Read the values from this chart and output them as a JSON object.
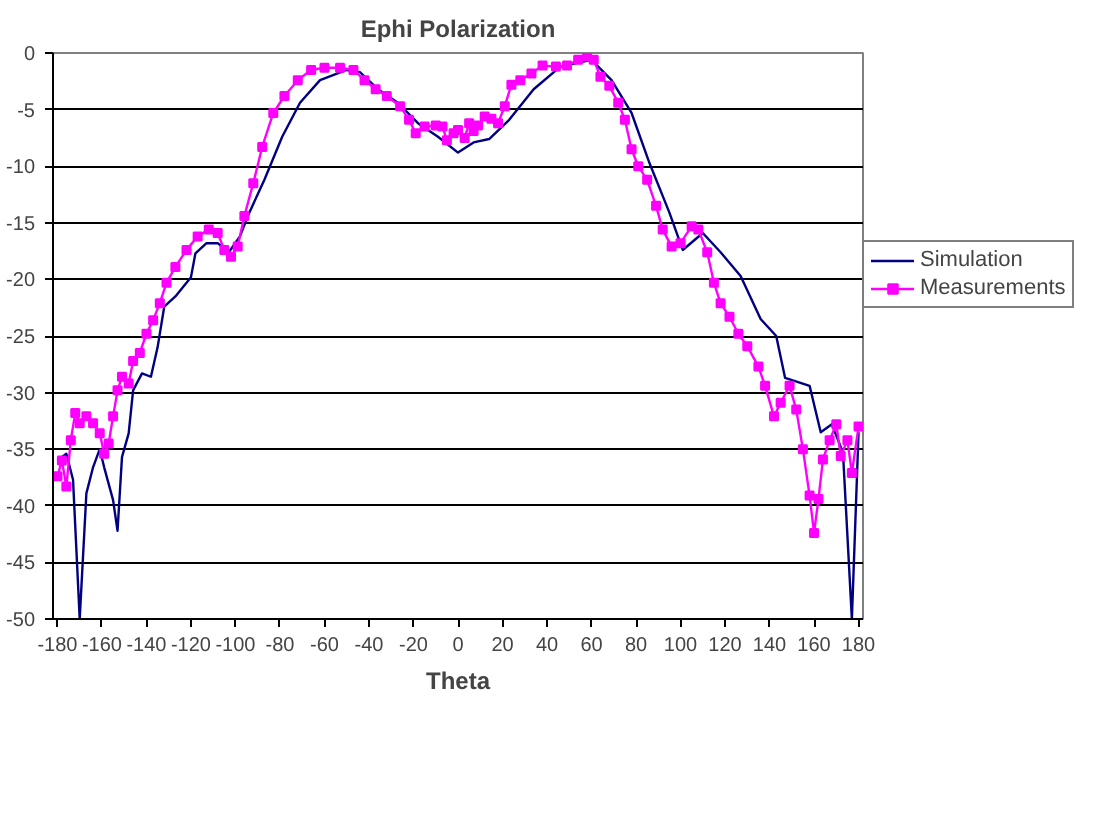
{
  "chart_data": {
    "type": "line",
    "title": "Ephi Polarization",
    "xlabel": "Theta",
    "xlim": [
      -182,
      182
    ],
    "xticks": [
      -180,
      -160,
      -140,
      -120,
      -100,
      -80,
      -60,
      -40,
      -20,
      0,
      20,
      40,
      60,
      80,
      100,
      120,
      140,
      160,
      180
    ],
    "ylim": [
      -50,
      0
    ],
    "yticks": [
      -50,
      -45,
      -40,
      -35,
      -30,
      -25,
      -20,
      -15,
      -10,
      -5,
      0
    ],
    "grid": "y",
    "legend": "right",
    "series": [
      {
        "name": "Simulation",
        "color": "#000080",
        "marker": "none",
        "x": [
          -180,
          -176,
          -173,
          -170,
          -167,
          -164,
          -161,
          -159,
          -155,
          -153,
          -151,
          -148,
          -146,
          -142,
          -138,
          -135,
          -132,
          -127,
          -120,
          -118,
          -113,
          -108,
          -103,
          -98,
          -94,
          -87,
          -79,
          -71,
          -62,
          -50,
          -44,
          -36,
          -27,
          -18,
          -9,
          0,
          7,
          14,
          23,
          34,
          46,
          60,
          69,
          78,
          86,
          95,
          101,
          110,
          118,
          127,
          136,
          143,
          147,
          158,
          163,
          168,
          173,
          177,
          180
        ],
        "values": [
          -36,
          -35.4,
          -37.7,
          -50,
          -38.9,
          -36.6,
          -35,
          -36.6,
          -39.5,
          -42.2,
          -35.7,
          -33.6,
          -29.8,
          -28.3,
          -28.6,
          -26,
          -22.4,
          -21.5,
          -19.8,
          -17.7,
          -16.8,
          -16.8,
          -17.6,
          -16.2,
          -14.2,
          -11.2,
          -7.4,
          -4.4,
          -2.4,
          -1.5,
          -1.7,
          -3.2,
          -4.4,
          -6.2,
          -7.4,
          -8.8,
          -7.9,
          -7.6,
          -5.9,
          -3.2,
          -1.2,
          -0.6,
          -2.4,
          -5.3,
          -9.7,
          -14.1,
          -17.4,
          -15.9,
          -17.6,
          -19.7,
          -23.5,
          -25,
          -28.7,
          -29.4,
          -33.5,
          -32.8,
          -35.3,
          -50,
          -33.5
        ]
      },
      {
        "name": "Measurements",
        "color": "#ff00ff",
        "marker": "square",
        "x": [
          -180,
          -178,
          -176,
          -174,
          -172,
          -170,
          -167,
          -164,
          -161,
          -159,
          -157,
          -155,
          -153,
          -151,
          -148,
          -146,
          -143,
          -140,
          -137,
          -134,
          -131,
          -127,
          -122,
          -117,
          -112,
          -108,
          -105,
          -102,
          -99,
          -96,
          -92,
          -88,
          -83,
          -78,
          -72,
          -66,
          -60,
          -53,
          -47,
          -42,
          -37,
          -32,
          -26,
          -22,
          -19,
          -15,
          -10,
          -7,
          -5,
          -2,
          0,
          3,
          5,
          7,
          9,
          12,
          15,
          18,
          21,
          24,
          28,
          33,
          38,
          44,
          49,
          54,
          58,
          61,
          64,
          68,
          72,
          75,
          78,
          81,
          85,
          89,
          92,
          96,
          100,
          105,
          108,
          112,
          115,
          118,
          122,
          126,
          130,
          135,
          138,
          142,
          145,
          149,
          152,
          155,
          158,
          160,
          162,
          164,
          167,
          170,
          172,
          175,
          177,
          180
        ],
        "values": [
          -37.4,
          -36,
          -38.3,
          -34.2,
          -31.8,
          -32.7,
          -32.1,
          -32.7,
          -33.6,
          -35.4,
          -34.5,
          -32.1,
          -29.8,
          -28.6,
          -29.2,
          -27.2,
          -26.5,
          -24.8,
          -23.6,
          -22.1,
          -20.3,
          -18.9,
          -17.4,
          -16.2,
          -15.6,
          -15.9,
          -17.4,
          -18,
          -17.1,
          -14.4,
          -11.5,
          -8.3,
          -5.3,
          -3.8,
          -2.4,
          -1.5,
          -1.3,
          -1.3,
          -1.5,
          -2.4,
          -3.2,
          -3.8,
          -4.7,
          -5.9,
          -7.1,
          -6.5,
          -6.4,
          -6.5,
          -7.7,
          -7.1,
          -6.8,
          -7.5,
          -6.2,
          -6.9,
          -6.4,
          -5.6,
          -5.8,
          -6.2,
          -4.7,
          -2.8,
          -2.4,
          -1.8,
          -1.1,
          -1.2,
          -1.1,
          -0.6,
          -0.3,
          -0.6,
          -2.1,
          -2.9,
          -4.4,
          -5.9,
          -8.5,
          -10,
          -11.2,
          -13.5,
          -15.6,
          -17.1,
          -16.8,
          -15.3,
          -15.6,
          -17.6,
          -20.3,
          -22.1,
          -23.3,
          -24.8,
          -25.9,
          -27.7,
          -29.4,
          -32.1,
          -30.9,
          -29.4,
          -31.5,
          -35,
          -39.1,
          -42.4,
          -39.4,
          -35.9,
          -34.2,
          -32.8,
          -35.6,
          -34.2,
          -37.1,
          -33
        ]
      }
    ]
  }
}
